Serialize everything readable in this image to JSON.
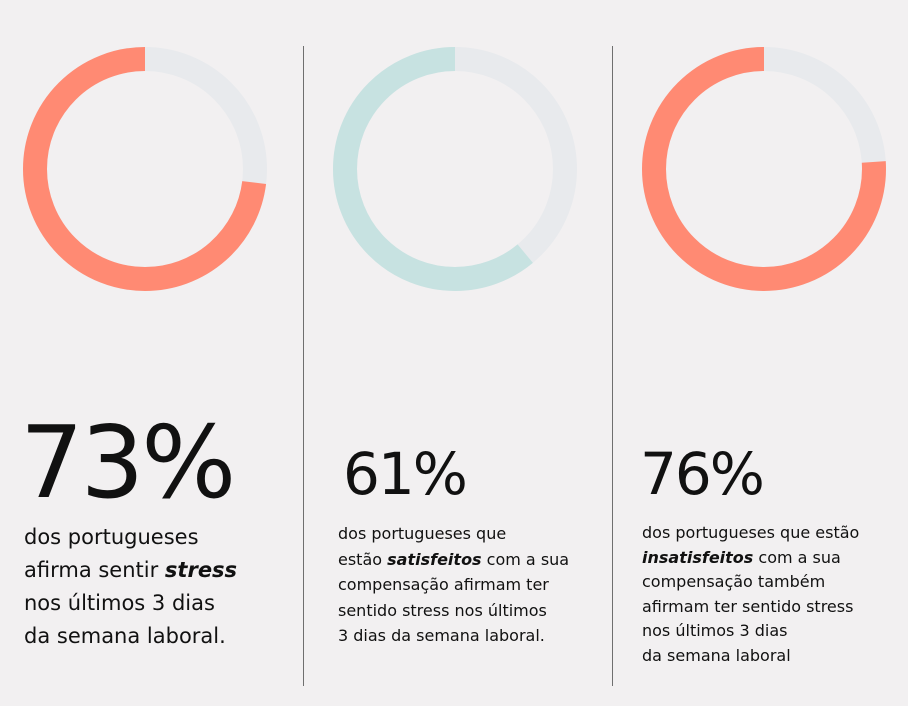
{
  "colors": {
    "background": "#f2f0f1",
    "coral": "#ff8a73",
    "mint": "#c7e2e1",
    "track": "#e8eaed",
    "divider": "#6f6f6f",
    "text": "#111111"
  },
  "chart_data": [
    {
      "type": "pie",
      "variant": "donut",
      "value": 73,
      "unit": "%",
      "color": "#ff8a73",
      "label": "73%",
      "description": [
        [
          "dos portugueses"
        ],
        [
          "afirma sentir ",
          {
            "em": "stress"
          }
        ],
        [
          "nos últimos 3 dias"
        ],
        [
          "da semana laboral."
        ]
      ]
    },
    {
      "type": "pie",
      "variant": "donut",
      "value": 61,
      "unit": "%",
      "color": "#c7e2e1",
      "label": "61%",
      "description": [
        [
          "dos portugueses que"
        ],
        [
          "estão ",
          {
            "em": "satisfeitos"
          },
          " com a sua"
        ],
        [
          "compensação afirmam ter"
        ],
        [
          "sentido stress nos últimos"
        ],
        [
          "3 dias da semana laboral."
        ]
      ]
    },
    {
      "type": "pie",
      "variant": "donut",
      "value": 76,
      "unit": "%",
      "color": "#ff8a73",
      "label": "76%",
      "description": [
        [
          "dos portugueses que estão"
        ],
        [
          {
            "em": "insatisfeitos"
          },
          " com a sua"
        ],
        [
          "compensação também"
        ],
        [
          "afirmam ter sentido stress"
        ],
        [
          "nos últimos 3 dias"
        ],
        [
          "da semana laboral"
        ]
      ]
    }
  ]
}
